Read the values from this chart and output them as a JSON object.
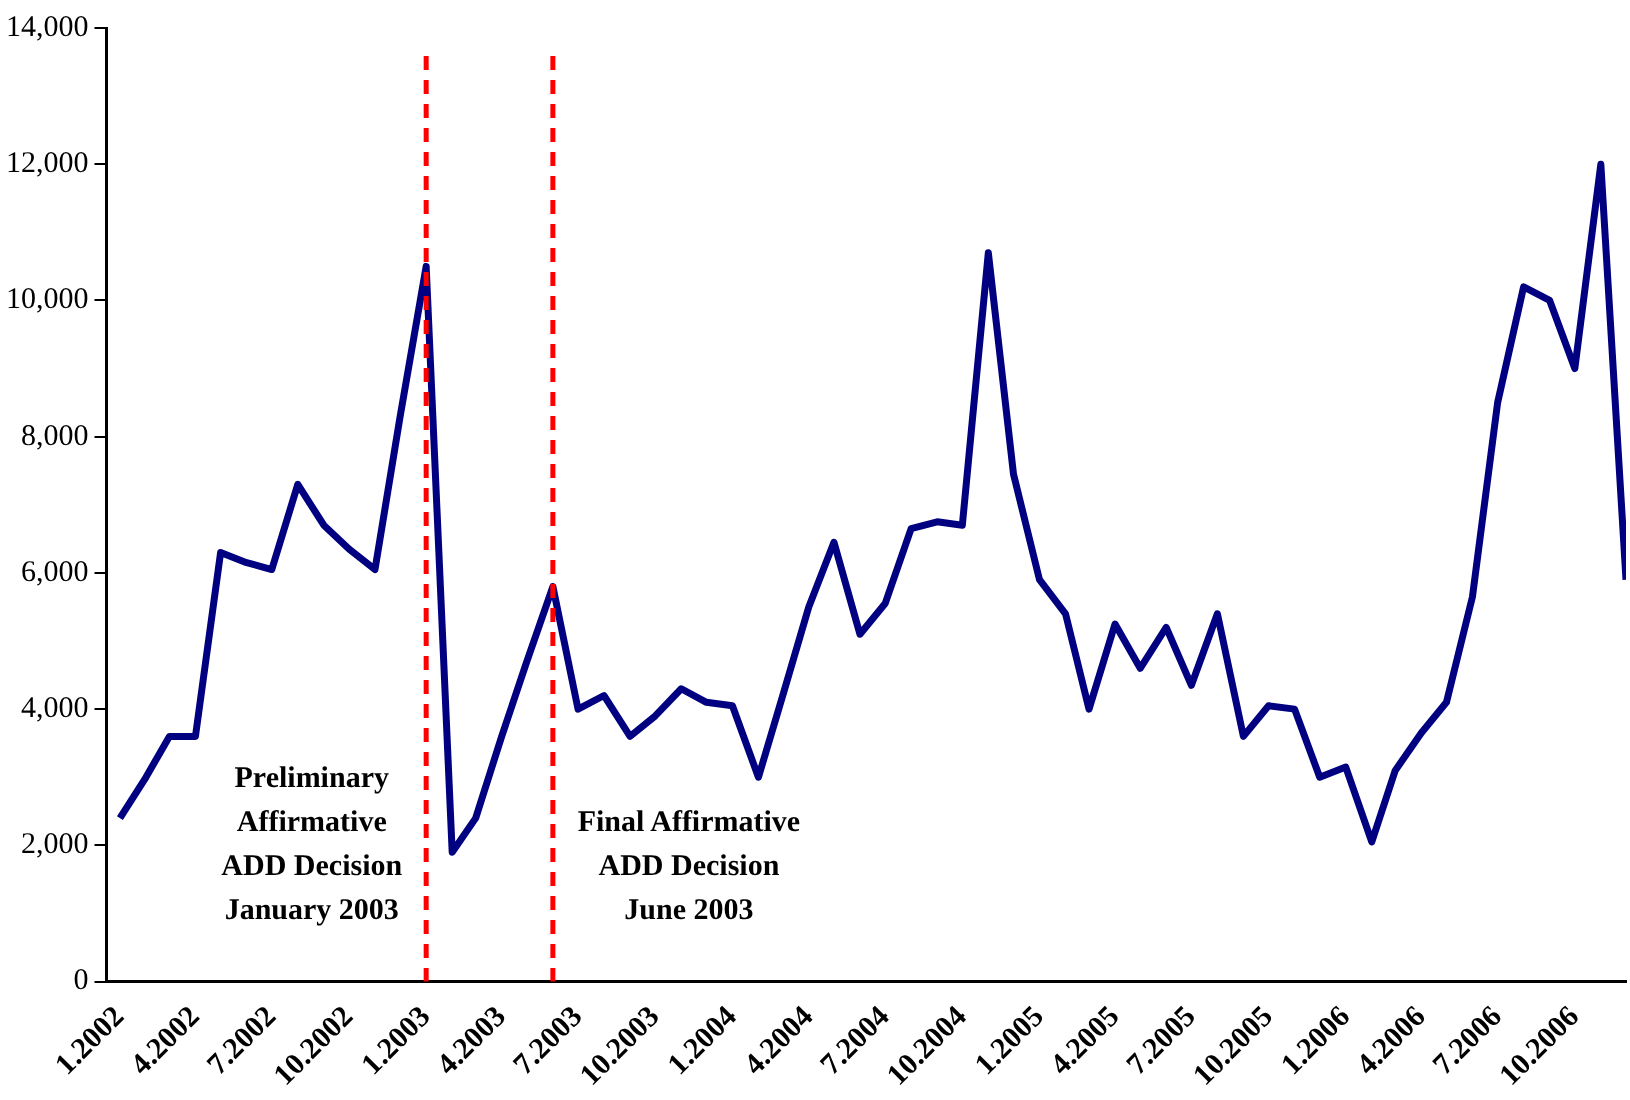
{
  "chart_data": {
    "type": "line",
    "x": [
      "2002-01",
      "2002-02",
      "2002-03",
      "2002-04",
      "2002-05",
      "2002-06",
      "2002-07",
      "2002-08",
      "2002-09",
      "2002-10",
      "2002-11",
      "2002-12",
      "2003-01",
      "2003-02",
      "2003-03",
      "2003-04",
      "2003-05",
      "2003-06",
      "2003-07",
      "2003-08",
      "2003-09",
      "2003-10",
      "2003-11",
      "2003-12",
      "2004-01",
      "2004-02",
      "2004-03",
      "2004-04",
      "2004-05",
      "2004-06",
      "2004-07",
      "2004-08",
      "2004-09",
      "2004-10",
      "2004-11",
      "2004-12",
      "2005-01",
      "2005-02",
      "2005-03",
      "2005-04",
      "2005-05",
      "2005-06",
      "2005-07",
      "2005-08",
      "2005-09",
      "2005-10",
      "2005-11",
      "2005-12",
      "2006-01",
      "2006-02",
      "2006-03",
      "2006-04",
      "2006-05",
      "2006-06",
      "2006-07",
      "2006-08",
      "2006-09",
      "2006-10",
      "2006-11",
      "2006-12"
    ],
    "series": [
      {
        "color": "#000080",
        "values": [
          2400,
          3000,
          3600,
          3600,
          6300,
          6150,
          6050,
          7300,
          6700,
          6350,
          6050,
          8300,
          10500,
          1900,
          2400,
          3600,
          4700,
          5800,
          4000,
          4200,
          3600,
          3900,
          4300,
          4100,
          4050,
          3000,
          4200,
          5500,
          6450,
          5100,
          5550,
          6650,
          6750,
          6700,
          10700,
          7450,
          5900,
          5400,
          4000,
          5250,
          4600,
          5200,
          4350,
          5400,
          3600,
          4050,
          4000,
          3000,
          3150,
          2050,
          3100,
          3650,
          4100,
          5650,
          8500,
          10200,
          10000,
          9000,
          12000,
          5900
        ]
      }
    ],
    "xlim": [
      "2001-12-16",
      "2006-12"
    ],
    "xticks": [
      {
        "value": "2002-01",
        "label": "1.2002"
      },
      {
        "value": "2002-04",
        "label": "4.2002"
      },
      {
        "value": "2002-07",
        "label": "7.2002"
      },
      {
        "value": "2002-10",
        "label": "10.2002"
      },
      {
        "value": "2003-01",
        "label": "1.2003"
      },
      {
        "value": "2003-04",
        "label": "4.2003"
      },
      {
        "value": "2003-07",
        "label": "7.2003"
      },
      {
        "value": "2003-10",
        "label": "10.2003"
      },
      {
        "value": "2004-01",
        "label": "1.2004"
      },
      {
        "value": "2004-04",
        "label": "4.2004"
      },
      {
        "value": "2004-07",
        "label": "7.2004"
      },
      {
        "value": "2004-10",
        "label": "10.2004"
      },
      {
        "value": "2005-01",
        "label": "1.2005"
      },
      {
        "value": "2005-04",
        "label": "4.2005"
      },
      {
        "value": "2005-07",
        "label": "7.2005"
      },
      {
        "value": "2005-10",
        "label": "10.2005"
      },
      {
        "value": "2006-01",
        "label": "1.2006"
      },
      {
        "value": "2006-04",
        "label": "4.2006"
      },
      {
        "value": "2006-07",
        "label": "7.2006"
      },
      {
        "value": "2006-10",
        "label": "10.2006"
      }
    ],
    "ylim": [
      0,
      14000
    ],
    "yticks": [
      {
        "value": 0,
        "label": "0"
      },
      {
        "value": 2000,
        "label": "2,000"
      },
      {
        "value": 4000,
        "label": "4,000"
      },
      {
        "value": 6000,
        "label": "6,000"
      },
      {
        "value": 8000,
        "label": "8,000"
      },
      {
        "value": 10000,
        "label": "10,000"
      },
      {
        "value": 12000,
        "label": "12,000"
      },
      {
        "value": 14000,
        "label": "14,000"
      }
    ],
    "ref_lines": [
      {
        "axis": "x",
        "value": "2003-01",
        "label": "Preliminary\nAffirmative\nADD Decision\nJanuary 2003",
        "color": "#ff0000",
        "line_style": "dashed"
      },
      {
        "axis": "x",
        "value": "2003-06",
        "label": "Final Affirmative\nADD Decision\nJune 2003",
        "color": "#ff0000",
        "line_style": "dashed"
      }
    ],
    "grid": false,
    "legend": false,
    "marker": "none",
    "line_style": "solid"
  }
}
